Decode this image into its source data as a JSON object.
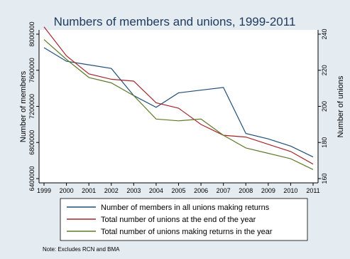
{
  "chart_data": {
    "type": "line",
    "title": "Numbers of members and unions, 1999-2011",
    "x": [
      1999,
      2000,
      2001,
      2002,
      2003,
      2004,
      2005,
      2006,
      2007,
      2008,
      2009,
      2010,
      2011
    ],
    "xticks": [
      "1999",
      "2000",
      "2001",
      "2002",
      "2003",
      "2004",
      "2005",
      "2006",
      "2007",
      "2008",
      "2009",
      "2010",
      "2011"
    ],
    "ylabel_left": "Number of members",
    "ylabel_right": "Number of unions",
    "ylim_left": [
      6400000,
      8000000
    ],
    "yticks_left": [
      "6400000",
      "6800000",
      "7200000",
      "7600000",
      "8000000"
    ],
    "ylim_right": [
      160,
      240
    ],
    "yticks_right": [
      "160",
      "180",
      "200",
      "220",
      "240"
    ],
    "grid": false,
    "legend_position": "bottom",
    "series": [
      {
        "name": "Number of members in all unions making returns",
        "axis": "left",
        "color": "#1f4e79",
        "values": [
          7850000,
          7700000,
          7660000,
          7620000,
          7320000,
          7190000,
          7350000,
          7380000,
          7410000,
          6900000,
          6840000,
          6760000,
          6640000
        ]
      },
      {
        "name": "Total number of unions at the end of the year",
        "axis": "right",
        "color": "#a4262c",
        "values": [
          244,
          228,
          218,
          215,
          214,
          202,
          199,
          190,
          184,
          183,
          179,
          175,
          168
        ]
      },
      {
        "name": "Total number of unions making returns in the year",
        "axis": "right",
        "color": "#5f7a2a",
        "values": [
          237,
          226,
          216,
          213,
          206,
          193,
          192,
          193,
          184,
          177,
          174,
          171,
          165
        ]
      }
    ],
    "note": "Note: Excludes RCN and BMA"
  }
}
